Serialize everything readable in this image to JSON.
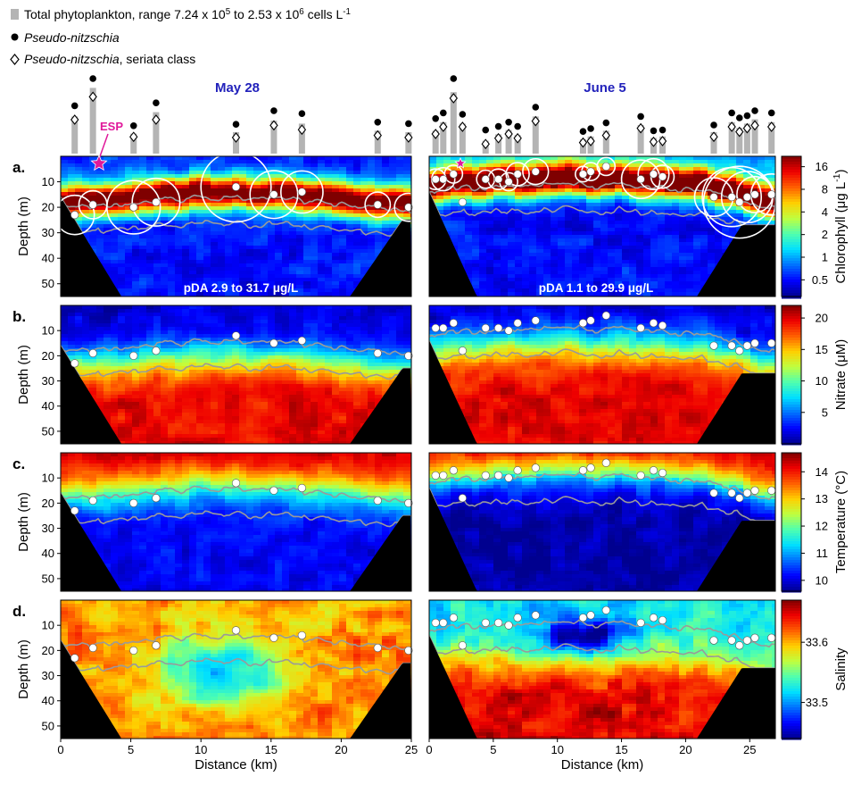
{
  "legend": {
    "items": [
      {
        "symbol": "gray-bar",
        "text": "Total phytoplankton, range 7.24 x 10^5 to 2.53 x 10^6 cells L^-1"
      },
      {
        "symbol": "filled-circle",
        "text": "Pseudo-nitzschia"
      },
      {
        "symbol": "open-diamond",
        "text": "Pseudo-nitzschia, seriata class"
      }
    ]
  },
  "colors": {
    "bar": "#b4b4b4",
    "seafloor": "#000000",
    "contour": "#9a9a9a",
    "esp_marker": "#e0189a",
    "date_title": "#2222bb",
    "colormap": [
      "#00008f",
      "#0000ff",
      "#006fff",
      "#00dfff",
      "#4fffaf",
      "#bfff3f",
      "#ffcf00",
      "#ff5f00",
      "#ef0000",
      "#7f0000"
    ]
  },
  "annotations": {
    "esp": "ESP",
    "pda_may": "pDA 2.9 to 31.7 μg/L",
    "pda_june": "pDA 1.1 to 29.9 μg/L"
  },
  "chart_data": [
    {
      "type": "heatmap",
      "panel": "a.",
      "sections": [
        "May 28",
        "June 5"
      ],
      "ylabel": "Depth (m)",
      "xlabel": "Distance (km)",
      "yticks": [
        10,
        20,
        30,
        40,
        50
      ],
      "xticks": {
        "May 28": [
          0,
          5,
          10,
          15,
          20,
          25
        ],
        "June 5": [
          0,
          5,
          10,
          15,
          20,
          25
        ]
      },
      "xlim": {
        "May 28": [
          0,
          25
        ],
        "June 5": [
          0,
          27
        ]
      },
      "ylim": [
        0,
        55
      ],
      "colorbar": {
        "label": "Chlorophyll (μg L^-1)",
        "ticks": [
          "0.5",
          "1",
          "2",
          "4",
          "8",
          "16"
        ],
        "scale": "log"
      },
      "annotations": [
        "ESP",
        "pDA 2.9 to 31.7 μg/L",
        "pDA 1.1 to 29.9 μg/L"
      ]
    },
    {
      "type": "heatmap",
      "panel": "b.",
      "ylabel": "Depth (m)",
      "yticks": [
        10,
        20,
        30,
        40,
        50
      ],
      "colorbar": {
        "label": "Nitrate (μM)",
        "ticks": [
          "5",
          "10",
          "15",
          "20"
        ],
        "range": [
          0,
          22
        ]
      }
    },
    {
      "type": "heatmap",
      "panel": "c.",
      "ylabel": "Depth (m)",
      "yticks": [
        10,
        20,
        30,
        40,
        50
      ],
      "colorbar": {
        "label": "Temperature (°C)",
        "ticks": [
          "10",
          "11",
          "12",
          "13",
          "14"
        ],
        "range": [
          9.6,
          14.7
        ]
      }
    },
    {
      "type": "heatmap",
      "panel": "d.",
      "ylabel": "Depth (m)",
      "xlabel": "Distance (km)",
      "yticks": [
        10,
        20,
        30,
        40,
        50
      ],
      "xticks": {
        "May 28": [
          0,
          5,
          10,
          15,
          20,
          25
        ],
        "June 5": [
          0,
          5,
          10,
          15,
          20,
          25
        ]
      },
      "colorbar": {
        "label": "Salinity",
        "ticks": [
          "33.5",
          "33.6"
        ],
        "range": [
          33.44,
          33.67
        ]
      }
    },
    {
      "type": "bar",
      "name": "Total phytoplankton",
      "sections": {
        "May 28": {
          "x": [
            1.0,
            2.3,
            5.2,
            6.8,
            12.5,
            15.2,
            17.2,
            22.6,
            24.8
          ],
          "bar_rel": [
            0.52,
            0.92,
            0.28,
            0.58,
            0.3,
            0.46,
            0.42,
            0.32,
            0.3
          ],
          "pn_rel": [
            0.62,
            1.0,
            0.34,
            0.66,
            0.36,
            0.55,
            0.51,
            0.39,
            0.37
          ],
          "seriata_rel": [
            0.5,
            0.82,
            0.26,
            0.5,
            0.25,
            0.42,
            0.36,
            0.28,
            0.25
          ]
        },
        "June 5": {
          "x": [
            0.5,
            1.1,
            1.9,
            2.6,
            4.4,
            5.4,
            6.2,
            6.9,
            8.3,
            12.0,
            12.6,
            13.8,
            16.5,
            17.5,
            18.2,
            22.2,
            23.6,
            24.2,
            24.8,
            25.4,
            26.7
          ],
          "bar_rel": [
            0.32,
            0.44,
            0.86,
            0.42,
            0.18,
            0.27,
            0.33,
            0.26,
            0.52,
            0.2,
            0.24,
            0.32,
            0.4,
            0.22,
            0.24,
            0.3,
            0.44,
            0.36,
            0.42,
            0.48,
            0.44
          ],
          "pn_rel": [
            0.44,
            0.52,
            1.0,
            0.5,
            0.28,
            0.33,
            0.39,
            0.33,
            0.6,
            0.26,
            0.3,
            0.38,
            0.47,
            0.27,
            0.28,
            0.35,
            0.52,
            0.45,
            0.48,
            0.55,
            0.52
          ],
          "seriata_rel": [
            0.3,
            0.4,
            0.8,
            0.4,
            0.16,
            0.24,
            0.3,
            0.24,
            0.48,
            0.18,
            0.2,
            0.28,
            0.38,
            0.19,
            0.2,
            0.26,
            0.4,
            0.33,
            0.38,
            0.42,
            0.4
          ]
        }
      }
    },
    {
      "type": "scatter",
      "name": "Sample locations (distance km, depth m)",
      "sections": {
        "May 28": {
          "x": [
            1.0,
            2.3,
            5.2,
            6.8,
            12.5,
            15.2,
            17.2,
            22.6,
            24.8
          ],
          "y": [
            23,
            19,
            20,
            18,
            12,
            15,
            14,
            19,
            20
          ],
          "pda_circle_km": [
            1.4,
            1.0,
            1.9,
            1.7,
            2.5,
            1.7,
            1.5,
            0.9,
            1.0
          ]
        },
        "June 5": {
          "x": [
            0.5,
            1.1,
            1.9,
            2.6,
            4.4,
            5.4,
            6.2,
            6.9,
            8.3,
            12.0,
            12.6,
            13.8,
            16.5,
            17.5,
            18.2,
            22.2,
            23.6,
            24.2,
            24.8,
            25.4,
            26.7
          ],
          "y": [
            9,
            9,
            7,
            18,
            9,
            9,
            10,
            7,
            6,
            7,
            6,
            4,
            9,
            7,
            8,
            16,
            16,
            18,
            16,
            15,
            15
          ],
          "pda_circle_km": [
            0.8,
            0.9,
            0.7,
            0,
            0.7,
            0.8,
            0.7,
            0.9,
            1.0,
            0.6,
            0.7,
            0.7,
            1.5,
            1.2,
            0.9,
            1.5,
            2.3,
            2.8,
            2.0,
            1.4,
            1.6
          ]
        }
      }
    }
  ]
}
